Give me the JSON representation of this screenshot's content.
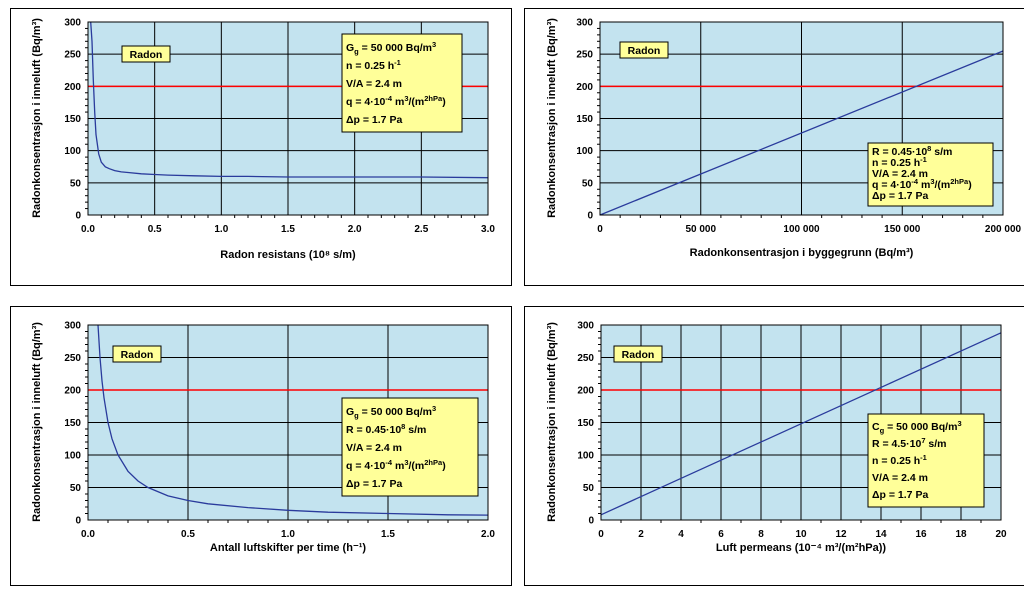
{
  "chart_data": [
    {
      "type": "line",
      "xlabel": "Radon resistans (10⁸ s/m)",
      "ylabel": "Radonkonsentrasjon i inneluft (Bq/m³)",
      "xlim": [
        0,
        3.0
      ],
      "ylim": [
        0,
        300
      ],
      "x_ticks": [
        "0.0",
        "0.5",
        "1.0",
        "1.5",
        "2.0",
        "2.5",
        "3.0"
      ],
      "y_ticks": [
        "0",
        "50",
        "100",
        "150",
        "200",
        "250",
        "300"
      ],
      "grid": true,
      "reference_line": {
        "y": 200,
        "color": "#ff0000"
      },
      "series": [
        {
          "name": "",
          "color": "#2a3b9c",
          "x": [
            0.02,
            0.03,
            0.04,
            0.05,
            0.06,
            0.08,
            0.1,
            0.13,
            0.16,
            0.2,
            0.25,
            0.3,
            0.4,
            0.5,
            0.6,
            0.8,
            1.0,
            1.2,
            1.5,
            2.0,
            2.5,
            3.0
          ],
          "y": [
            300,
            270,
            210,
            160,
            125,
            95,
            82,
            75,
            72,
            69,
            67,
            66,
            64,
            63,
            62,
            61,
            60,
            60,
            59,
            59,
            59,
            58
          ]
        }
      ],
      "label_box": "Radon",
      "annotation": [
        "G_g = 50 000 Bq/m^3",
        "n = 0.25 h^-1",
        "V/A = 2.4 m",
        "q = 4·10^-4 m^3/(m^2hPa)",
        "Δp = 1.7 Pa"
      ]
    },
    {
      "type": "line",
      "xlabel": "Radonkonsentrasjon i byggegrunn (Bq/m³)",
      "ylabel": "Radonkonsentrasjon i inneluft (Bq/m³)",
      "xlim": [
        0,
        200000
      ],
      "ylim": [
        0,
        300
      ],
      "x_ticks": [
        "0",
        "50 000",
        "100 000",
        "150 000",
        "200 000"
      ],
      "y_ticks": [
        "0",
        "50",
        "100",
        "150",
        "200",
        "250",
        "300"
      ],
      "grid": true,
      "reference_line": {
        "y": 200,
        "color": "#ff0000"
      },
      "series": [
        {
          "name": "",
          "color": "#2a3b9c",
          "x": [
            0,
            200000
          ],
          "y": [
            0,
            255
          ]
        }
      ],
      "label_box": "Radon",
      "annotation": [
        "R = 0.45·10^8 s/m",
        "n = 0.25 h^-1",
        "V/A = 2.4 m",
        "q = 4·10^-4 m^3/(m^2hPa)",
        "Δp = 1.7 Pa"
      ]
    },
    {
      "type": "line",
      "xlabel": "Antall luftskifter per time (h⁻¹)",
      "ylabel": "Radonkonsentrasjon i inneluft (Bq/m³)",
      "xlim": [
        0,
        2.0
      ],
      "ylim": [
        0,
        300
      ],
      "x_ticks": [
        "0.0",
        "0.5",
        "1.0",
        "1.5",
        "2.0"
      ],
      "y_ticks": [
        "0",
        "50",
        "100",
        "150",
        "200",
        "250",
        "300"
      ],
      "grid": true,
      "reference_line": {
        "y": 200,
        "color": "#ff0000"
      },
      "series": [
        {
          "name": "",
          "color": "#2a3b9c",
          "x": [
            0.05,
            0.06,
            0.07,
            0.08,
            0.1,
            0.12,
            0.15,
            0.2,
            0.25,
            0.3,
            0.4,
            0.5,
            0.6,
            0.8,
            1.0,
            1.2,
            1.5,
            1.8,
            2.0
          ],
          "y": [
            300,
            250,
            214,
            188,
            150,
            125,
            100,
            75,
            60,
            50,
            37,
            30,
            25,
            19,
            15,
            12,
            10,
            8,
            7.5
          ]
        }
      ],
      "label_box": "Radon",
      "annotation": [
        "G_g = 50 000 Bq/m^3",
        "R = 0.45·10^8 s/m",
        "V/A = 2.4 m",
        "q = 4·10^-4 m^3/(m^2hPa)",
        "Δp = 1.7 Pa"
      ]
    },
    {
      "type": "line",
      "xlabel": "Luft permeans (10⁻⁴ m³/(m²hPa))",
      "ylabel": "Radonkonsentrasjon i inneluft (Bq/m³)",
      "xlim": [
        0,
        20
      ],
      "ylim": [
        0,
        300
      ],
      "x_ticks": [
        "0",
        "2",
        "4",
        "6",
        "8",
        "10",
        "12",
        "14",
        "16",
        "18",
        "20"
      ],
      "y_ticks": [
        "0",
        "50",
        "100",
        "150",
        "200",
        "250",
        "300"
      ],
      "grid": true,
      "reference_line": {
        "y": 200,
        "color": "#ff0000"
      },
      "series": [
        {
          "name": "",
          "color": "#2a3b9c",
          "x": [
            0,
            20
          ],
          "y": [
            8,
            288
          ]
        }
      ],
      "label_box": "Radon",
      "annotation": [
        "C_g = 50 000 Bq/m^3",
        "R = 4.5·10^7 s/m",
        "n = 0.25 h^-1",
        "V/A = 2.4 m",
        "Δp = 1.7 Pa"
      ]
    }
  ]
}
